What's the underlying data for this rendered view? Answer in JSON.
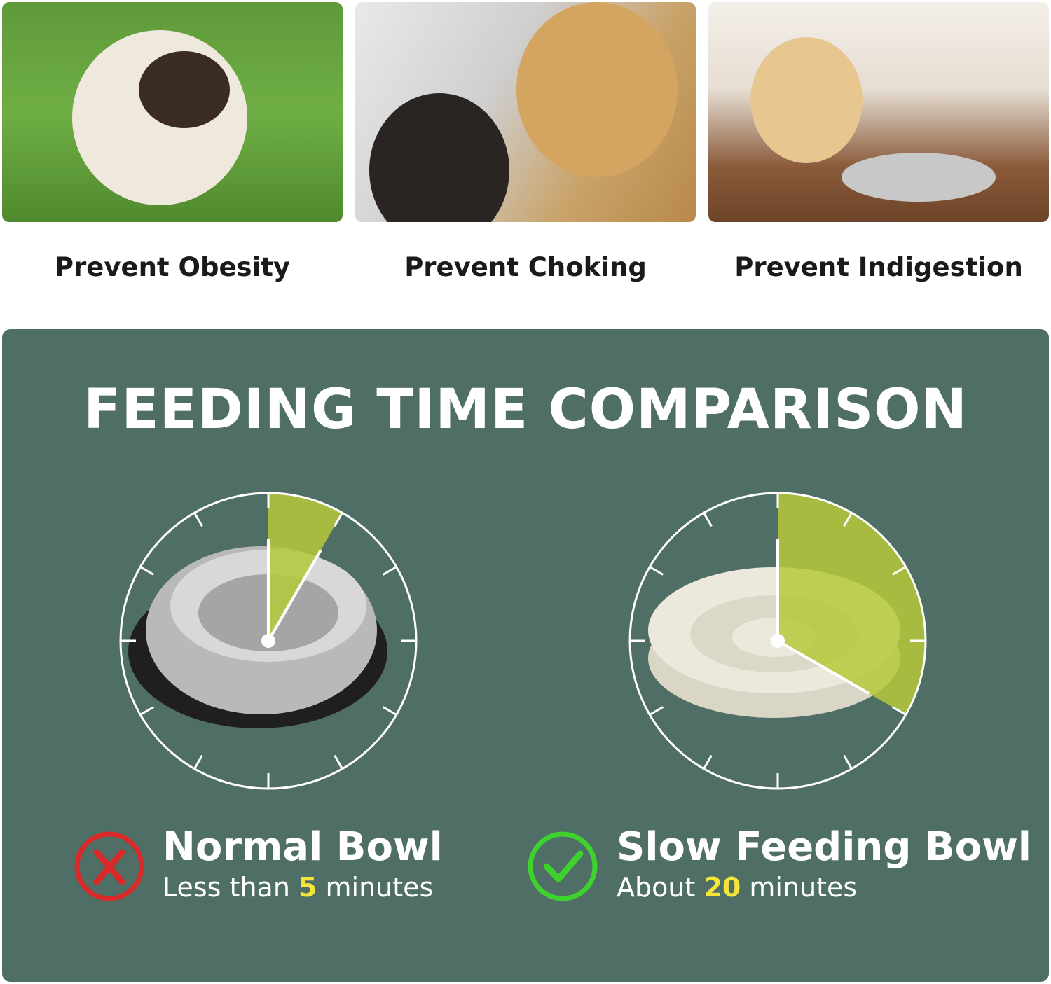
{
  "benefits": [
    {
      "label": "Prevent Obesity"
    },
    {
      "label": "Prevent Choking"
    },
    {
      "label": "Prevent Indigestion"
    }
  ],
  "comparison": {
    "title": "FEEDING TIME COMPARISON",
    "accent": "#f4e53a",
    "wedge_color": "#b5c93a",
    "background": "#4f6e65",
    "normal": {
      "name": "Normal Bowl",
      "prefix": "Less than ",
      "value": "5",
      "suffix": " minutes",
      "minutes": 5,
      "icon": "cross-circle-icon",
      "icon_color": "#d92a2a"
    },
    "slow": {
      "name": "Slow Feeding Bowl",
      "prefix": "About ",
      "value": "20",
      "suffix": " minutes",
      "minutes": 20,
      "icon": "check-circle-icon",
      "icon_color": "#3fd12e"
    }
  }
}
